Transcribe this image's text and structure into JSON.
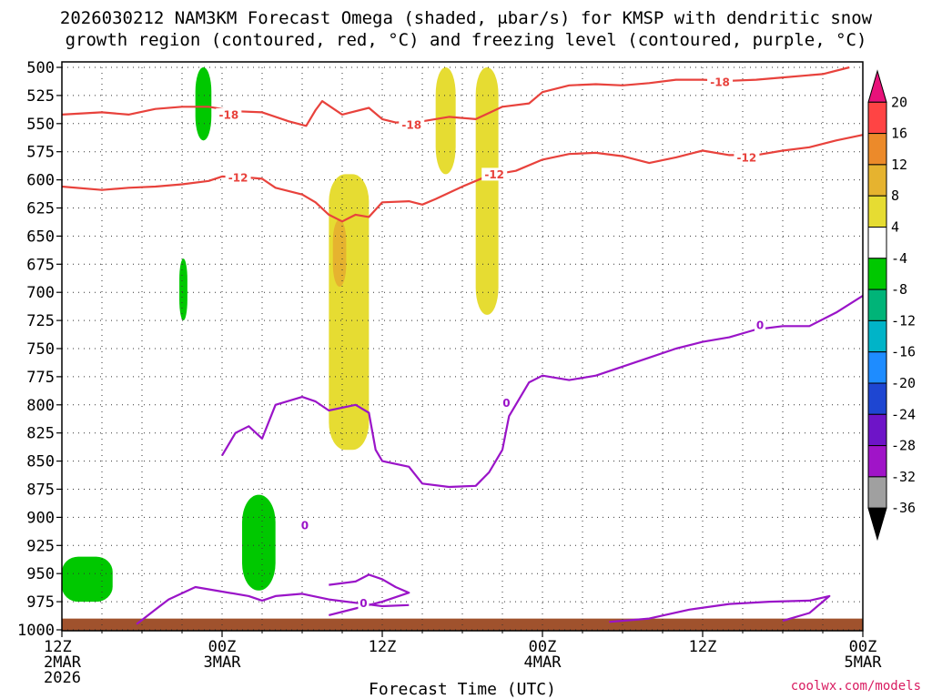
{
  "title_lines": [
    "2026030212 NAM3KM Forecast Omega (shaded, μbar/s) for KMSP with dendritic snow",
    "growth region (contoured, red, °C) and freezing level (contoured, purple, °C)"
  ],
  "credit": "coolwx.com/models",
  "chart_data": {
    "type": "heatmap",
    "title": "2026030212 NAM3KM Forecast Omega (shaded, μbar/s) for KMSP with dendritic snow growth region (contoured, red, °C) and freezing level (contoured, purple, °C)",
    "xlabel": "Forecast Time (UTC)",
    "ylabel": "",
    "x_unit": "forecast hour from 2026030212",
    "xlim": [
      0,
      60
    ],
    "ylim": [
      1000,
      500
    ],
    "y_ticks": [
      500,
      525,
      550,
      575,
      600,
      625,
      650,
      675,
      700,
      725,
      750,
      775,
      800,
      825,
      850,
      875,
      900,
      925,
      950,
      975,
      1000
    ],
    "x_ticks": [
      {
        "x": 0,
        "lines": [
          "12Z",
          "2MAR",
          "2026"
        ]
      },
      {
        "x": 12,
        "lines": [
          "00Z",
          "3MAR"
        ]
      },
      {
        "x": 24,
        "lines": [
          "12Z"
        ]
      },
      {
        "x": 36,
        "lines": [
          "00Z",
          "4MAR"
        ]
      },
      {
        "x": 48,
        "lines": [
          "12Z"
        ]
      },
      {
        "x": 60,
        "lines": [
          "00Z",
          "5MAR"
        ]
      }
    ],
    "colorbar": {
      "labels": [
        "20",
        "16",
        "12",
        "8",
        "4",
        "-4",
        "-8",
        "-12",
        "-16",
        "-20",
        "-24",
        "-28",
        "-32",
        "-36"
      ],
      "colors": [
        "#e8127a",
        "#ff4444",
        "#ec8a2a",
        "#e6b32f",
        "#e6dc32",
        "#ffffff",
        "#00c800",
        "#00b478",
        "#00b4c8",
        "#1e8cff",
        "#1e46d2",
        "#6e14c8",
        "#a014c8",
        "#a0a0a0",
        "#000000"
      ]
    },
    "contour_labels": [
      {
        "series": "dgz",
        "text": "-18",
        "x": 12.5,
        "y": 542
      },
      {
        "series": "dgz",
        "text": "-18",
        "x": 26.2,
        "y": 551
      },
      {
        "series": "dgz",
        "text": "-18",
        "x": 49.3,
        "y": 513
      },
      {
        "series": "dgz",
        "text": "-12",
        "x": 13.2,
        "y": 598
      },
      {
        "series": "dgz",
        "text": "-12",
        "x": 32.4,
        "y": 595
      },
      {
        "series": "dgz",
        "text": "-12",
        "x": 51.3,
        "y": 580
      },
      {
        "series": "freezing",
        "text": "0",
        "x": 33.3,
        "y": 798
      },
      {
        "series": "freezing",
        "text": "0",
        "x": 18.2,
        "y": 907
      },
      {
        "series": "freezing",
        "text": "0",
        "x": 22.6,
        "y": 976
      },
      {
        "series": "freezing",
        "text": "0",
        "x": 52.3,
        "y": 729
      }
    ],
    "series": [
      {
        "name": "dgz -18",
        "color": "#e8423c",
        "points": [
          [
            0,
            542
          ],
          [
            3,
            540
          ],
          [
            5,
            542
          ],
          [
            7,
            537
          ],
          [
            9,
            535
          ],
          [
            11,
            535
          ],
          [
            13,
            539
          ],
          [
            15,
            540
          ],
          [
            17,
            548
          ],
          [
            18.3,
            552
          ],
          [
            19,
            538
          ],
          [
            19.5,
            530
          ],
          [
            21,
            542
          ],
          [
            23,
            536
          ],
          [
            24,
            546
          ],
          [
            25,
            549
          ],
          [
            27,
            548
          ],
          [
            29,
            544
          ],
          [
            31,
            546
          ],
          [
            33,
            535
          ],
          [
            35,
            532
          ],
          [
            36,
            522
          ],
          [
            38,
            516
          ],
          [
            40,
            515
          ],
          [
            42,
            516
          ],
          [
            44,
            514
          ],
          [
            46,
            511
          ],
          [
            48,
            511
          ],
          [
            50,
            512
          ],
          [
            52,
            511
          ],
          [
            54,
            509
          ],
          [
            57,
            506
          ],
          [
            59,
            500
          ]
        ]
      },
      {
        "name": "dgz -12",
        "color": "#e8423c",
        "points": [
          [
            0,
            606
          ],
          [
            3,
            609
          ],
          [
            5,
            607
          ],
          [
            7,
            606
          ],
          [
            9,
            604
          ],
          [
            11,
            601
          ],
          [
            12,
            597
          ],
          [
            14,
            598
          ],
          [
            15,
            599
          ],
          [
            16,
            607
          ],
          [
            18,
            613
          ],
          [
            19,
            620
          ],
          [
            20,
            631
          ],
          [
            21,
            637
          ],
          [
            22,
            631
          ],
          [
            23,
            633
          ],
          [
            24,
            620
          ],
          [
            26,
            619
          ],
          [
            27,
            622
          ],
          [
            28,
            617
          ],
          [
            30,
            606
          ],
          [
            32,
            596
          ],
          [
            34,
            592
          ],
          [
            36,
            582
          ],
          [
            38,
            577
          ],
          [
            40,
            576
          ],
          [
            42,
            579
          ],
          [
            44,
            585
          ],
          [
            46,
            580
          ],
          [
            48,
            574
          ],
          [
            50,
            578
          ],
          [
            52,
            578
          ],
          [
            54,
            574
          ],
          [
            56,
            571
          ],
          [
            58,
            565
          ],
          [
            60,
            560
          ]
        ]
      },
      {
        "name": "freezing 0",
        "color": "#9a14c8",
        "points": [
          [
            5.6,
            995
          ],
          [
            7,
            982
          ],
          [
            8,
            973
          ],
          [
            10,
            962
          ],
          [
            12,
            966
          ],
          [
            14,
            970
          ],
          [
            15,
            974
          ],
          [
            16,
            970
          ],
          [
            18,
            968
          ],
          [
            20,
            973
          ],
          [
            22,
            976
          ],
          [
            24,
            979
          ],
          [
            26,
            978
          ]
        ]
      },
      {
        "name": "freezing 0 loop",
        "color": "#9a14c8",
        "points": [
          [
            12,
            845
          ],
          [
            13,
            825
          ],
          [
            14,
            819
          ],
          [
            15,
            830
          ],
          [
            16,
            800
          ],
          [
            18,
            793
          ],
          [
            19,
            797
          ],
          [
            20,
            805
          ],
          [
            22,
            800
          ],
          [
            23,
            807
          ],
          [
            23.5,
            840
          ],
          [
            24,
            850
          ],
          [
            26,
            855
          ],
          [
            27,
            870
          ],
          [
            29,
            873
          ],
          [
            31,
            872
          ],
          [
            32,
            860
          ],
          [
            33,
            840
          ],
          [
            33.5,
            810
          ],
          [
            35,
            780
          ],
          [
            36,
            774
          ],
          [
            38,
            778
          ],
          [
            40,
            774
          ],
          [
            42,
            766
          ],
          [
            44,
            758
          ],
          [
            46,
            750
          ],
          [
            48,
            744
          ],
          [
            50,
            740
          ],
          [
            52,
            733
          ],
          [
            54,
            730
          ],
          [
            56,
            730
          ],
          [
            58,
            718
          ],
          [
            60,
            703
          ]
        ]
      },
      {
        "name": "freezing 0 lower",
        "color": "#9a14c8",
        "points": [
          [
            20,
            960
          ],
          [
            22,
            957
          ],
          [
            23,
            951
          ],
          [
            24,
            955
          ],
          [
            25,
            962
          ],
          [
            26,
            967
          ],
          [
            24,
            975
          ],
          [
            22,
            981
          ],
          [
            20,
            987
          ]
        ]
      },
      {
        "name": "freezing 0 east",
        "color": "#9a14c8",
        "points": [
          [
            41,
            993
          ],
          [
            44,
            990
          ],
          [
            47,
            982
          ],
          [
            50,
            977
          ],
          [
            53,
            975
          ],
          [
            56,
            974
          ],
          [
            57.5,
            970
          ],
          [
            56,
            985
          ],
          [
            54,
            992
          ]
        ]
      }
    ],
    "shaded_regions": [
      {
        "value_range": "-8 to -4",
        "color": "#00c800",
        "x": [
          10,
          11.2
        ],
        "p": [
          500,
          565
        ]
      },
      {
        "value_range": "-8 to -4",
        "color": "#00c800",
        "x": [
          8.8,
          9.4
        ],
        "p": [
          670,
          725
        ]
      },
      {
        "value_range": "-8 to -4",
        "color": "#00c800",
        "x": [
          13.5,
          16
        ],
        "p": [
          880,
          965
        ]
      },
      {
        "value_range": "-8 to -4",
        "color": "#00c800",
        "x": [
          0,
          3.8
        ],
        "p": [
          935,
          975
        ]
      },
      {
        "value_range": "4 to 8",
        "color": "#e6dc32",
        "x": [
          28,
          29.5
        ],
        "p": [
          500,
          595
        ]
      },
      {
        "value_range": "4 to 8",
        "color": "#e6dc32",
        "x": [
          31,
          32.7
        ],
        "p": [
          500,
          720
        ]
      },
      {
        "value_range": "4 to 8",
        "color": "#e6dc32",
        "x": [
          20,
          23
        ],
        "p": [
          595,
          840
        ]
      },
      {
        "value_range": "8 to 12",
        "color": "#e6b32f",
        "x": [
          20.3,
          21.3
        ],
        "p": [
          635,
          695
        ]
      }
    ]
  }
}
